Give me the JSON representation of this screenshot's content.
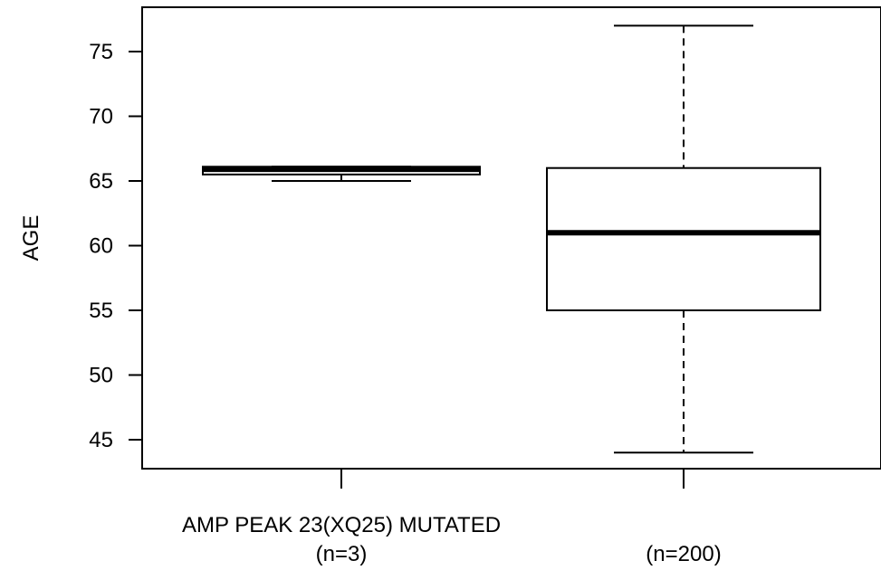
{
  "chart_data": {
    "type": "box",
    "ylabel": "AGE",
    "yticks": [
      45,
      50,
      55,
      60,
      65,
      70,
      75
    ],
    "ylim": [
      42.6,
      78.1
    ],
    "groups": [
      {
        "label_lines": [
          "AMP PEAK 23(XQ25) MUTATED",
          "(n=3)"
        ],
        "min": 65,
        "q1": 65.5,
        "median": 65.9,
        "q3": 66.1,
        "max": 66.1
      },
      {
        "label_lines": [
          "",
          "(n=200)"
        ],
        "min": 44,
        "q1": 55,
        "median": 61,
        "q3": 66,
        "max": 77
      }
    ]
  }
}
